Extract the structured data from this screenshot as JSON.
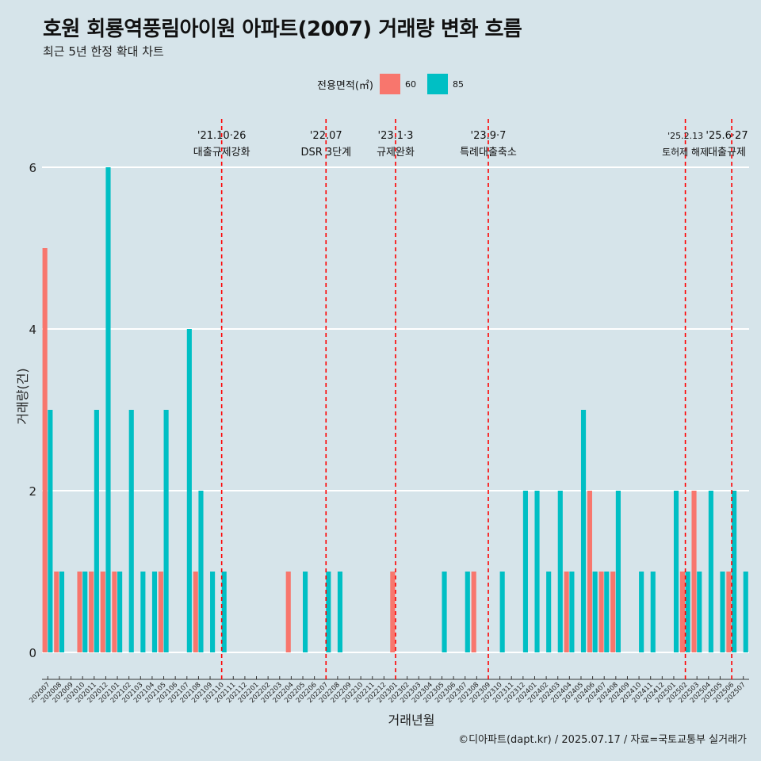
{
  "title": "호원 회룡역풍림아이원 아파트(2007) 거래량 변화 흐름",
  "subtitle": "최근 5년 한정 확대 차트",
  "legend": {
    "title": "전용면적(㎡)",
    "items": [
      {
        "label": "60",
        "color": "#f8766d"
      },
      {
        "label": "85",
        "color": "#00bfc4"
      }
    ]
  },
  "caption": "©디아파트(dapt.kr) / 2025.07.17 / 자료=국토교통부 실거래가",
  "chart_data": {
    "type": "bar",
    "title": "호원 회룡역풍림아이원 아파트(2007) 거래량 변화 흐름",
    "xlabel": "거래년월",
    "ylabel": "거래량(건)",
    "ylim": [
      0,
      6
    ],
    "yticks": [
      0,
      2,
      4,
      6
    ],
    "grid": true,
    "legend_position": "top",
    "categories": [
      "202007",
      "202008",
      "202009",
      "202010",
      "202011",
      "202012",
      "202101",
      "202102",
      "202103",
      "202104",
      "202105",
      "202106",
      "202107",
      "202108",
      "202109",
      "202110",
      "202111",
      "202112",
      "202201",
      "202202",
      "202203",
      "202204",
      "202205",
      "202206",
      "202207",
      "202208",
      "202209",
      "202210",
      "202211",
      "202212",
      "202301",
      "202302",
      "202303",
      "202304",
      "202305",
      "202306",
      "202307",
      "202308",
      "202309",
      "202310",
      "202311",
      "202312",
      "202401",
      "202402",
      "202403",
      "202404",
      "202405",
      "202406",
      "202407",
      "202408",
      "202409",
      "202410",
      "202411",
      "202412",
      "202501",
      "202502",
      "202503",
      "202504",
      "202505",
      "202506",
      "202507"
    ],
    "series": [
      {
        "name": "60",
        "color": "#f8766d",
        "values": [
          5,
          1,
          0,
          1,
          1,
          1,
          1,
          0,
          0,
          0,
          1,
          0,
          0,
          1,
          0,
          0,
          0,
          0,
          0,
          0,
          0,
          1,
          0,
          0,
          0,
          0,
          0,
          0,
          0,
          0,
          1,
          0,
          0,
          0,
          0,
          0,
          0,
          1,
          0,
          0,
          0,
          0,
          0,
          0,
          0,
          1,
          0,
          2,
          1,
          1,
          0,
          0,
          0,
          0,
          0,
          1,
          2,
          0,
          0,
          1,
          0
        ]
      },
      {
        "name": "85",
        "color": "#00bfc4",
        "values": [
          3,
          1,
          0,
          1,
          3,
          6,
          1,
          3,
          1,
          1,
          3,
          0,
          4,
          2,
          1,
          1,
          0,
          0,
          0,
          0,
          0,
          0,
          1,
          0,
          1,
          1,
          0,
          0,
          0,
          0,
          0,
          0,
          0,
          0,
          1,
          0,
          1,
          0,
          0,
          1,
          0,
          2,
          2,
          1,
          2,
          1,
          3,
          1,
          1,
          2,
          0,
          1,
          1,
          0,
          2,
          1,
          1,
          2,
          1,
          2,
          1
        ]
      }
    ],
    "annotations": [
      {
        "x": "202110",
        "label_top": "'21.10·26",
        "label_bottom": "대출규제강화"
      },
      {
        "x": "202207",
        "label_top": "'22.07",
        "label_bottom": "DSR 3단계"
      },
      {
        "x": "202301",
        "label_top": "'23.1·3",
        "label_bottom": "규제완화"
      },
      {
        "x": "202309",
        "label_top": "'23.9·7",
        "label_bottom": "특례대출축소"
      },
      {
        "x": "202502",
        "label_top": "'25.2.13",
        "label_bottom": "토허제 해제"
      },
      {
        "x": "202506",
        "label_top": "'25.6·27",
        "label_bottom": "대출규제"
      }
    ]
  }
}
